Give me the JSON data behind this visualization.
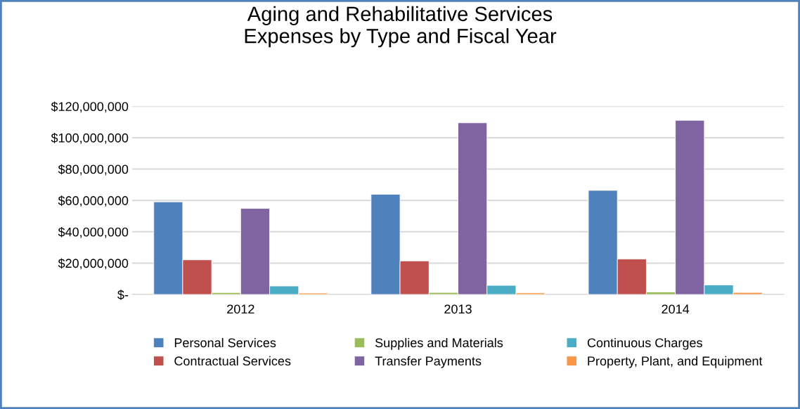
{
  "chart_data": {
    "type": "bar",
    "title": "Aging and Rehabilitative Services\nExpenses by Type and Fiscal Year",
    "categories": [
      "2012",
      "2013",
      "2014"
    ],
    "series": [
      {
        "name": "Personal Services",
        "color": "#4f81bd",
        "values": [
          59100000,
          63900000,
          66400000
        ]
      },
      {
        "name": "Contractual Services",
        "color": "#c0504d",
        "values": [
          22100000,
          21400000,
          22600000
        ]
      },
      {
        "name": "Supplies and Materials",
        "color": "#9bbb59",
        "values": [
          1200000,
          1300000,
          1600000
        ]
      },
      {
        "name": "Transfer Payments",
        "color": "#8064a2",
        "values": [
          54900000,
          109500000,
          111100000
        ]
      },
      {
        "name": "Continuous Charges",
        "color": "#4bacc6",
        "values": [
          5400000,
          5800000,
          6100000
        ]
      },
      {
        "name": "Property, Plant, and Equipment",
        "color": "#f79646",
        "values": [
          900000,
          1000000,
          1300000
        ]
      }
    ],
    "ylim": [
      0,
      120000000
    ],
    "yticks": [
      {
        "value": 0,
        "label": "$-"
      },
      {
        "value": 20000000,
        "label": "$20,000,000"
      },
      {
        "value": 40000000,
        "label": "$40,000,000"
      },
      {
        "value": 60000000,
        "label": "$60,000,000"
      },
      {
        "value": 80000000,
        "label": "$80,000,000"
      },
      {
        "value": 100000000,
        "label": "$100,000,000"
      },
      {
        "value": 120000000,
        "label": "$120,000,000"
      }
    ],
    "grid": "y",
    "legend": "bottom"
  }
}
